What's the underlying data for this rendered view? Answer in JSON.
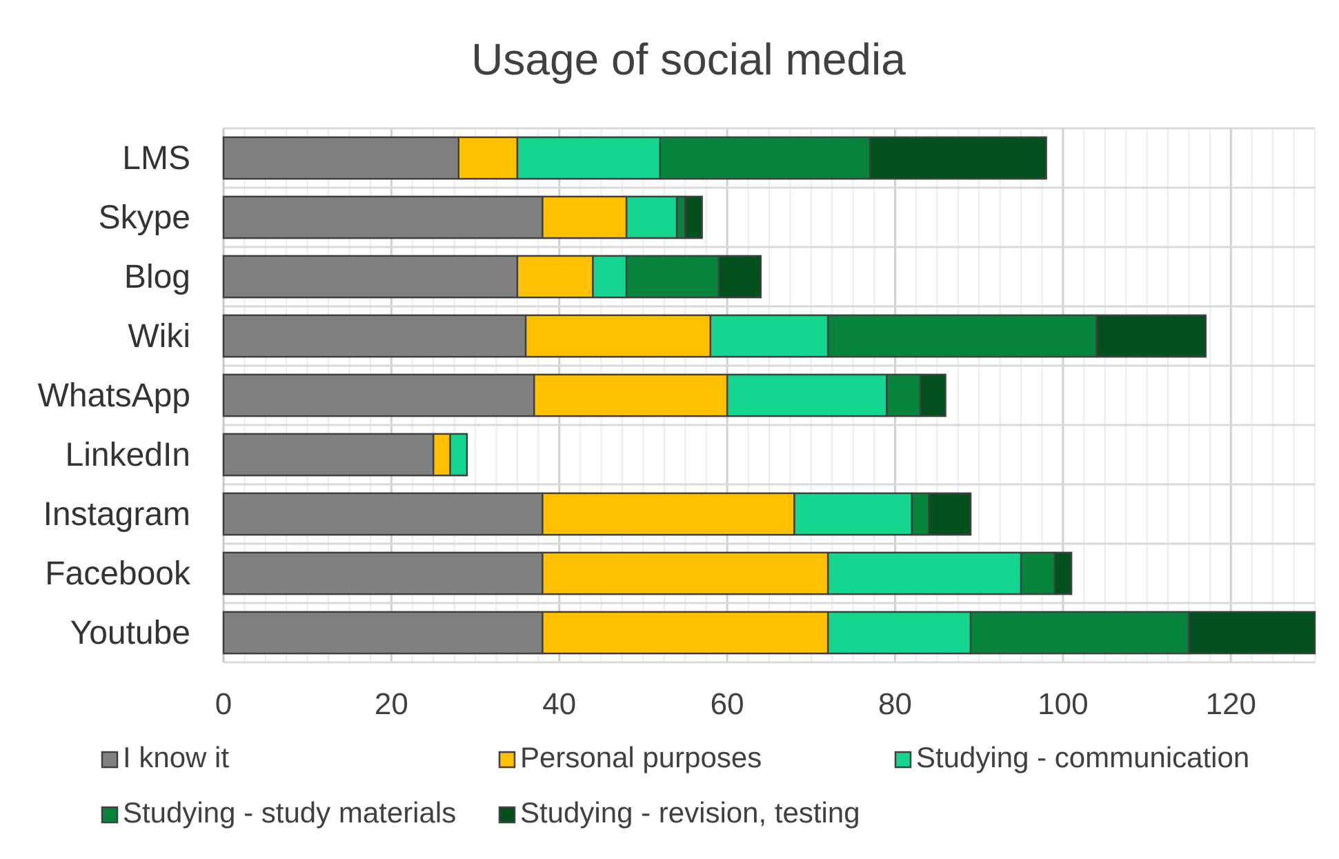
{
  "chart_data": {
    "type": "bar",
    "orientation": "horizontal",
    "stacked": true,
    "title": "Usage of social media",
    "categories": [
      "LMS",
      "Skype",
      "Blog",
      "Wiki",
      "WhatsApp",
      "LinkedIn",
      "Instagram",
      "Facebook",
      "Youtube"
    ],
    "series": [
      {
        "name": "I know it",
        "color": "#808080",
        "values": [
          28,
          38,
          35,
          36,
          37,
          25,
          38,
          38,
          38
        ]
      },
      {
        "name": "Personal purposes",
        "color": "#ffc000",
        "values": [
          7,
          10,
          9,
          22,
          23,
          2,
          30,
          34,
          34
        ]
      },
      {
        "name": "Studying - communication",
        "color": "#14d68e",
        "values": [
          17,
          6,
          4,
          14,
          19,
          2,
          14,
          23,
          17
        ]
      },
      {
        "name": "Studying - study materials",
        "color": "#06843c",
        "values": [
          25,
          1,
          11,
          32,
          4,
          0,
          2,
          4,
          26
        ]
      },
      {
        "name": "Studying - revision, testing",
        "color": "#03501f",
        "values": [
          21,
          2,
          5,
          13,
          3,
          0,
          5,
          2,
          15
        ]
      }
    ],
    "xlim": [
      0,
      130
    ],
    "xticks": [
      0,
      20,
      40,
      60,
      80,
      100,
      120
    ],
    "xlabel": "",
    "ylabel": "",
    "grid": true,
    "legend_position": "bottom"
  }
}
